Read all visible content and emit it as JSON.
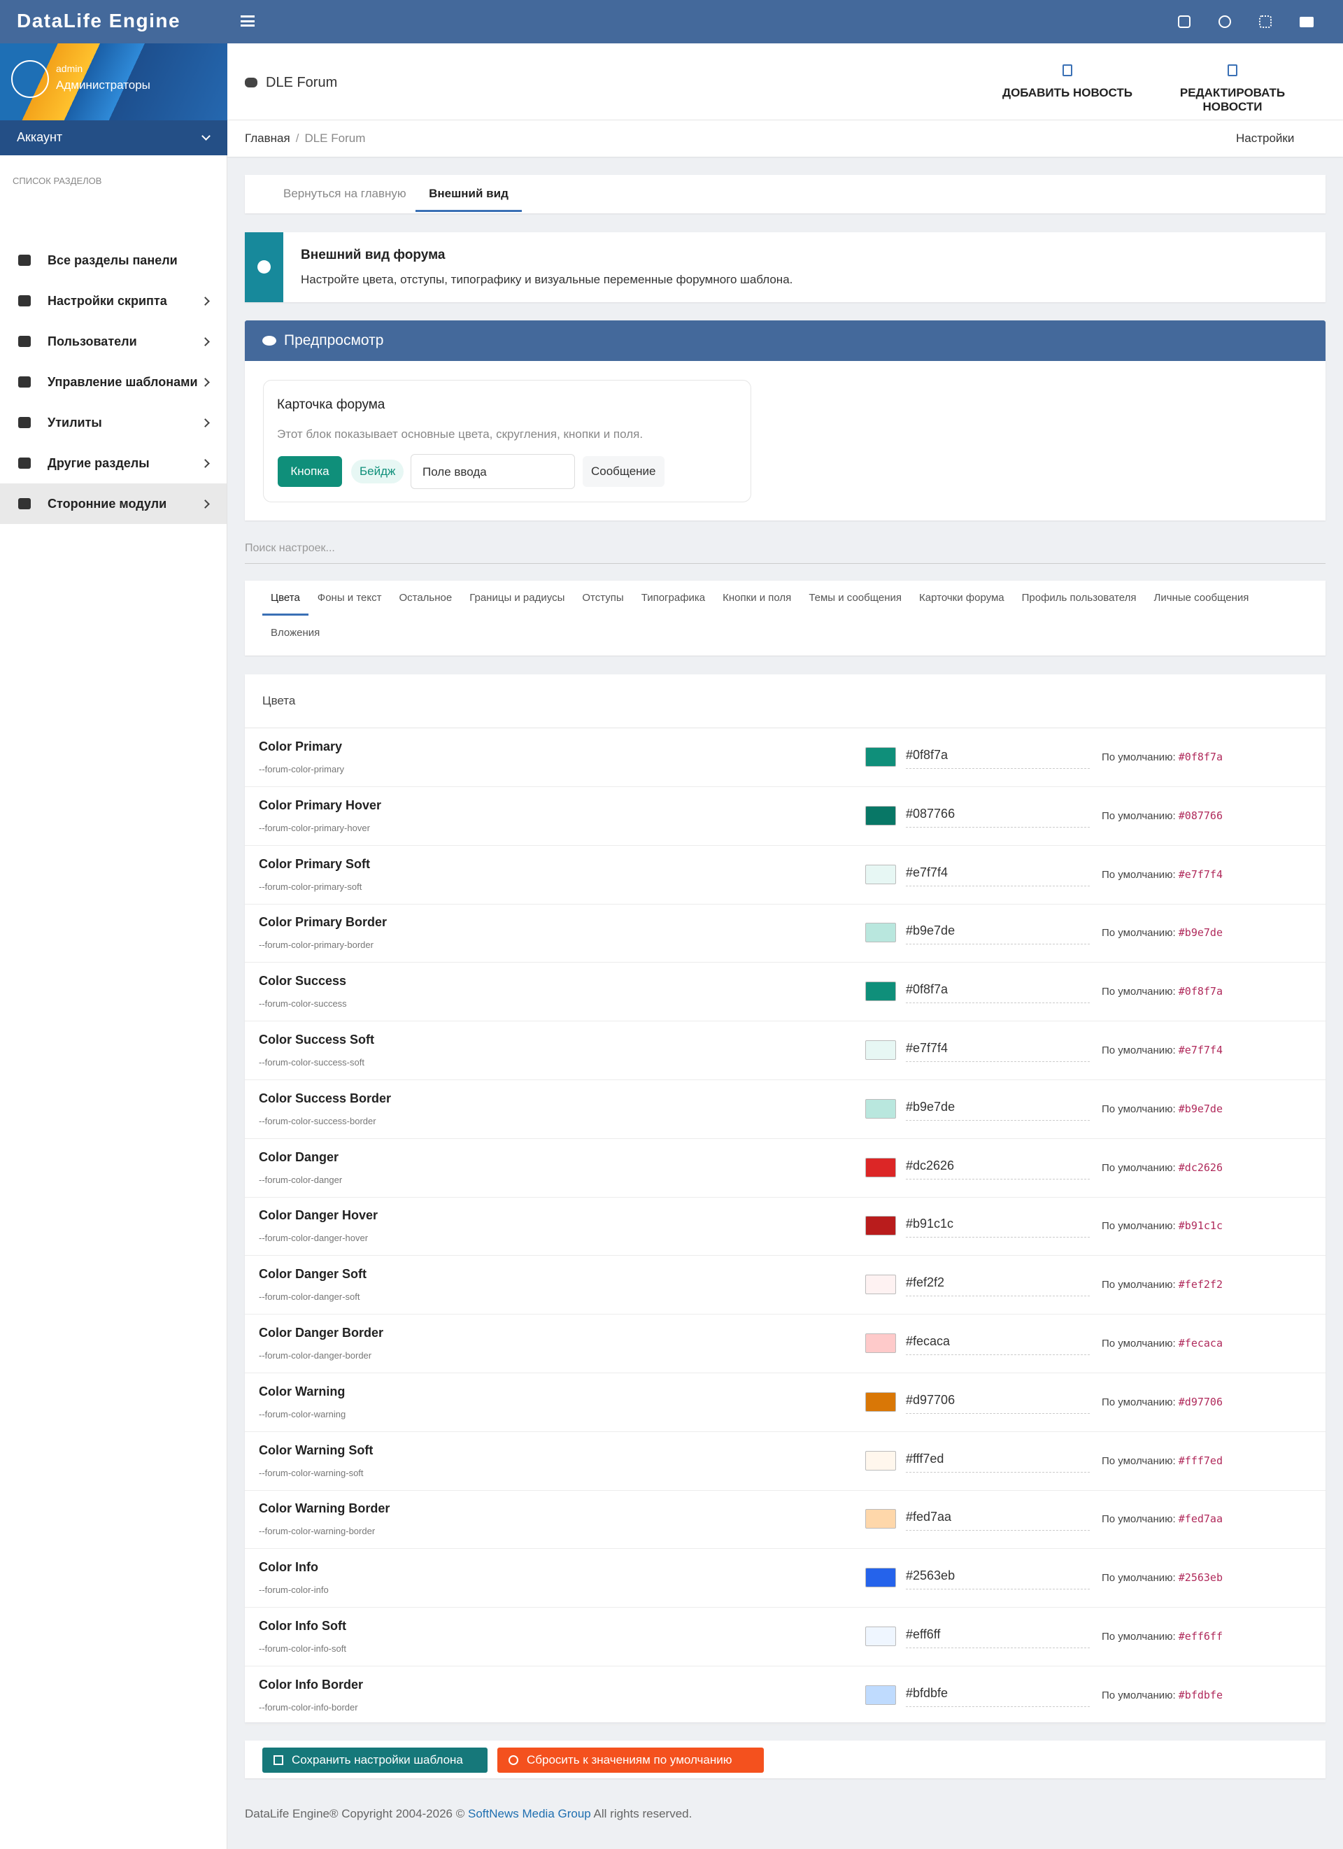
{
  "app": {
    "title": "DataLife Engine"
  },
  "user": {
    "login": "admin",
    "group": "Администраторы",
    "account": "Аккаунт"
  },
  "sidebar": {
    "section_title": "СПИСОК РАЗДЕЛОВ",
    "items": [
      "Все разделы панели",
      "Настройки скрипта",
      "Пользователи",
      "Управление шаблонами",
      "Утилиты",
      "Другие разделы",
      "Сторонние модули"
    ]
  },
  "header": {
    "title": "DLE Forum",
    "actions": [
      "ДОБАВИТЬ НОВОСТЬ",
      "РЕДАКТИРОВАТЬ НОВОСТИ"
    ]
  },
  "breadcrumb": {
    "home": "Главная",
    "separator": "/",
    "current": "DLE Forum",
    "settings": "Настройки"
  },
  "page_tabs": [
    "Вернуться на главную",
    "Внешний вид"
  ],
  "alert": {
    "title": "Внешний вид форума",
    "text": "Настройте цвета, отступы, типографику и визуальные переменные форумного шаблона."
  },
  "preview": {
    "title": "Предпросмотр",
    "card_title": "Карточка форума",
    "card_text": "Этот блок показывает основные цвета, скругления, кнопки и поля.",
    "button": "Кнопка",
    "badge": "Бейдж",
    "input": "Поле ввода",
    "message": "Сообщение"
  },
  "search": {
    "placeholder": "Поиск настроек..."
  },
  "section_tabs": [
    "Цвета",
    "Фоны и текст",
    "Остальное",
    "Границы и радиусы",
    "Отступы",
    "Типографика",
    "Кнопки и поля",
    "Темы и сообщения",
    "Карточки форума",
    "Профиль пользователя",
    "Личные сообщения",
    "Вложения"
  ],
  "colors": {
    "title": "Цвета",
    "default_label": "По умолчанию:",
    "rows": [
      {
        "name": "Color Primary",
        "var": "--forum-color-primary",
        "value": "#0f8f7a",
        "default": "#0f8f7a"
      },
      {
        "name": "Color Primary Hover",
        "var": "--forum-color-primary-hover",
        "value": "#087766",
        "default": "#087766"
      },
      {
        "name": "Color Primary Soft",
        "var": "--forum-color-primary-soft",
        "value": "#e7f7f4",
        "default": "#e7f7f4"
      },
      {
        "name": "Color Primary Border",
        "var": "--forum-color-primary-border",
        "value": "#b9e7de",
        "default": "#b9e7de"
      },
      {
        "name": "Color Success",
        "var": "--forum-color-success",
        "value": "#0f8f7a",
        "default": "#0f8f7a"
      },
      {
        "name": "Color Success Soft",
        "var": "--forum-color-success-soft",
        "value": "#e7f7f4",
        "default": "#e7f7f4"
      },
      {
        "name": "Color Success Border",
        "var": "--forum-color-success-border",
        "value": "#b9e7de",
        "default": "#b9e7de"
      },
      {
        "name": "Color Danger",
        "var": "--forum-color-danger",
        "value": "#dc2626",
        "default": "#dc2626"
      },
      {
        "name": "Color Danger Hover",
        "var": "--forum-color-danger-hover",
        "value": "#b91c1c",
        "default": "#b91c1c"
      },
      {
        "name": "Color Danger Soft",
        "var": "--forum-color-danger-soft",
        "value": "#fef2f2",
        "default": "#fef2f2"
      },
      {
        "name": "Color Danger Border",
        "var": "--forum-color-danger-border",
        "value": "#fecaca",
        "default": "#fecaca"
      },
      {
        "name": "Color Warning",
        "var": "--forum-color-warning",
        "value": "#d97706",
        "default": "#d97706"
      },
      {
        "name": "Color Warning Soft",
        "var": "--forum-color-warning-soft",
        "value": "#fff7ed",
        "default": "#fff7ed"
      },
      {
        "name": "Color Warning Border",
        "var": "--forum-color-warning-border",
        "value": "#fed7aa",
        "default": "#fed7aa"
      },
      {
        "name": "Color Info",
        "var": "--forum-color-info",
        "value": "#2563eb",
        "default": "#2563eb"
      },
      {
        "name": "Color Info Soft",
        "var": "--forum-color-info-soft",
        "value": "#eff6ff",
        "default": "#eff6ff"
      },
      {
        "name": "Color Info Border",
        "var": "--forum-color-info-border",
        "value": "#bfdbfe",
        "default": "#bfdbfe"
      }
    ]
  },
  "buttons": {
    "save": "Сохранить настройки шаблона",
    "reset": "Сбросить к значениям по умолчанию"
  },
  "footer": {
    "text": "DataLife Engine® Copyright 2004-2026 ©",
    "link": "SoftNews Media Group",
    "rights": "All rights reserved."
  }
}
